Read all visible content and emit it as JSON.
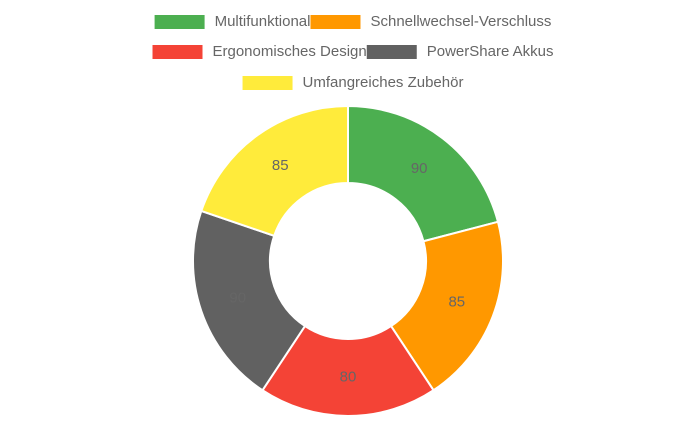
{
  "chart_data": {
    "type": "doughnut",
    "categories": [
      "Multifunktional",
      "Schnellwechsel-Verschluss",
      "Ergonomisches Design",
      "PowerShare Akkus",
      "Umfangreiches Zubehör"
    ],
    "values": [
      90,
      85,
      80,
      90,
      85
    ],
    "colors": [
      "#4caf50",
      "#ff9800",
      "#f44336",
      "#616161",
      "#ffeb3b"
    ],
    "legend": "top"
  }
}
